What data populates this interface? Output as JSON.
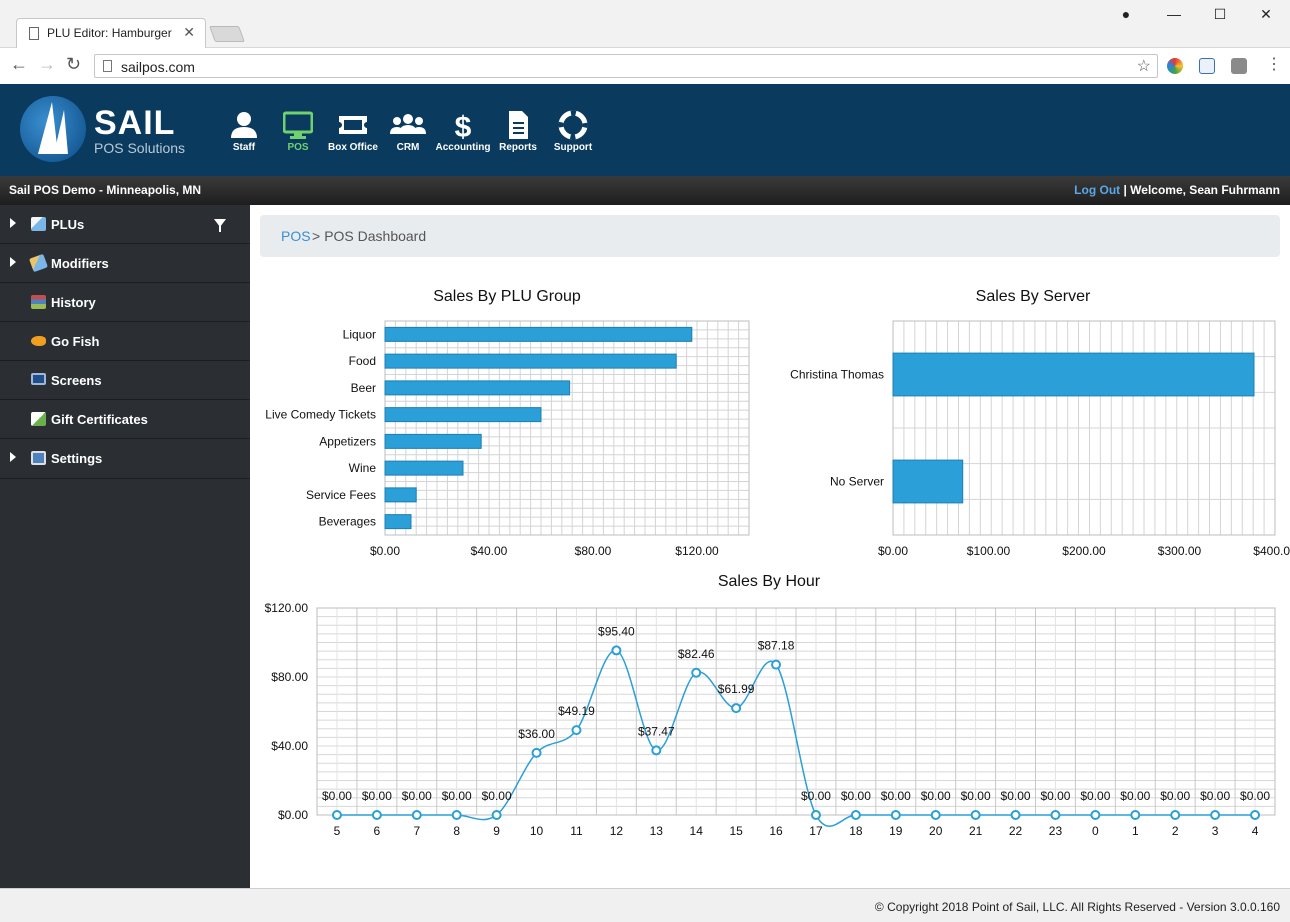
{
  "browser": {
    "tab_title": "PLU Editor: Hamburger",
    "url": "sailpos.com"
  },
  "header": {
    "logo_name": "SAIL",
    "logo_subtitle": "POS Solutions",
    "nav": [
      {
        "label": "Staff",
        "icon": "user-icon",
        "active": false
      },
      {
        "label": "POS",
        "icon": "monitor-icon",
        "active": true
      },
      {
        "label": "Box Office",
        "icon": "ticket-icon",
        "active": false
      },
      {
        "label": "CRM",
        "icon": "users-icon",
        "active": false
      },
      {
        "label": "Accounting",
        "icon": "dollar-icon",
        "active": false
      },
      {
        "label": "Reports",
        "icon": "document-icon",
        "active": false
      },
      {
        "label": "Support",
        "icon": "lifebuoy-icon",
        "active": false
      }
    ]
  },
  "status": {
    "location": "Sail POS Demo - Minneapolis, MN",
    "logout": "Log Out",
    "welcome": "| Welcome, Sean Fuhrmann"
  },
  "sidebar": {
    "items": [
      {
        "label": "PLUs",
        "icon": "tags-icon",
        "expandable": true,
        "filter": true
      },
      {
        "label": "Modifiers",
        "icon": "tag-edit-icon",
        "expandable": true
      },
      {
        "label": "History",
        "icon": "books-icon",
        "expandable": false
      },
      {
        "label": "Go Fish",
        "icon": "fish-icon",
        "expandable": false
      },
      {
        "label": "Screens",
        "icon": "screen-icon",
        "expandable": false
      },
      {
        "label": "Gift Certificates",
        "icon": "gift-icon",
        "expandable": false
      },
      {
        "label": "Settings",
        "icon": "settings-check-icon",
        "expandable": true
      }
    ]
  },
  "breadcrumb": {
    "link": "POS",
    "separator": ">",
    "current": "POS Dashboard"
  },
  "colors": {
    "bar": "#2a9fd8",
    "bar_border": "#1f7fb3",
    "line": "#2a9fd8",
    "header_bg": "#0a3a5e",
    "active_nav": "#6fd16f"
  },
  "chart_data": [
    {
      "type": "bar",
      "orientation": "horizontal",
      "title": "Sales By PLU Group",
      "categories": [
        "Liquor",
        "Food",
        "Beer",
        "Live Comedy Tickets",
        "Appetizers",
        "Wine",
        "Service Fees",
        "Beverages"
      ],
      "values": [
        118,
        112,
        71,
        60,
        37,
        30,
        12,
        10
      ],
      "xlim": [
        0,
        140
      ],
      "xticks": [
        "$0.00",
        "$40.00",
        "$80.00",
        "$120.00"
      ],
      "xtick_values": [
        0,
        40,
        80,
        120
      ],
      "grid": true
    },
    {
      "type": "bar",
      "orientation": "horizontal",
      "title": "Sales By Server",
      "categories": [
        "Christina Thomas",
        "No Server"
      ],
      "values": [
        378,
        73
      ],
      "xlim": [
        0,
        400
      ],
      "xticks": [
        "$0.00",
        "$100.00",
        "$200.00",
        "$300.00",
        "$400.00"
      ],
      "xtick_values": [
        0,
        100,
        200,
        300,
        400
      ],
      "grid": true
    },
    {
      "type": "line",
      "title": "Sales By Hour",
      "x": [
        "5",
        "6",
        "7",
        "8",
        "9",
        "10",
        "11",
        "12",
        "13",
        "14",
        "15",
        "16",
        "17",
        "18",
        "19",
        "20",
        "21",
        "22",
        "23",
        "0",
        "1",
        "2",
        "3",
        "4"
      ],
      "values": [
        0,
        0,
        0,
        0,
        0,
        36.0,
        49.19,
        95.4,
        37.47,
        82.46,
        61.99,
        87.18,
        0,
        0,
        0,
        0,
        0,
        0,
        0,
        0,
        0,
        0,
        0,
        0
      ],
      "labels": [
        "$0.00",
        "$0.00",
        "$0.00",
        "$0.00",
        "$0.00",
        "$36.00",
        "$49.19",
        "$95.40",
        "$37.47",
        "$82.46",
        "$61.99",
        "$87.18",
        "$0.00",
        "$0.00",
        "$0.00",
        "$0.00",
        "$0.00",
        "$0.00",
        "$0.00",
        "$0.00",
        "$0.00",
        "$0.00",
        "$0.00",
        "$0.00"
      ],
      "ylim": [
        0,
        120
      ],
      "yticks": [
        "$0.00",
        "$40.00",
        "$80.00",
        "$120.00"
      ],
      "ytick_values": [
        0,
        40,
        80,
        120
      ],
      "grid": true,
      "smooth": true
    }
  ],
  "footer": {
    "copyright": "© Copyright 2018 Point of Sail, LLC. All Rights Reserved - Version 3.0.0.160"
  }
}
